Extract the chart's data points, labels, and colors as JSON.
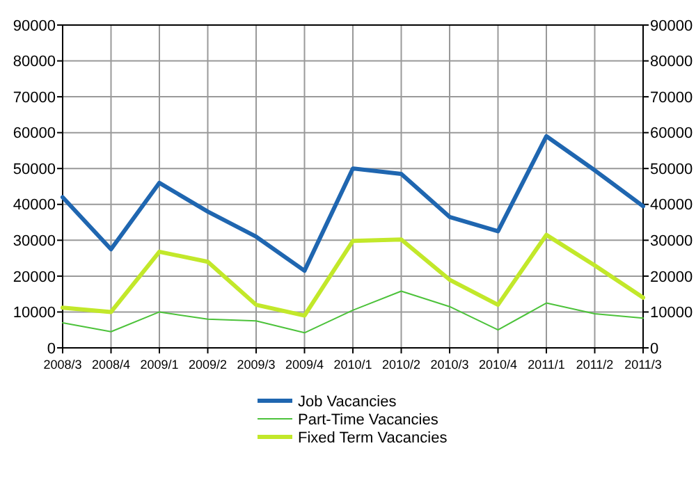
{
  "chart_data": {
    "type": "line",
    "categories": [
      "2008/3",
      "2008/4",
      "2009/1",
      "2009/2",
      "2009/3",
      "2009/4",
      "2010/1",
      "2010/2",
      "2010/3",
      "2010/4",
      "2011/1",
      "2011/2",
      "2011/3"
    ],
    "series": [
      {
        "name": "Job Vacancies",
        "color": "#1f66b0",
        "values": [
          42000,
          27500,
          46000,
          38000,
          31000,
          21500,
          50000,
          48500,
          36500,
          32500,
          59000,
          49500,
          39500
        ]
      },
      {
        "name": "Part-Time Vacancies",
        "color": "#4cc23a",
        "values": [
          7000,
          4500,
          10000,
          8000,
          7500,
          4200,
          10500,
          15800,
          11500,
          5000,
          12500,
          9500,
          8300
        ]
      },
      {
        "name": "Fixed Term Vacancies",
        "color": "#c2e82a",
        "values": [
          11200,
          10000,
          26800,
          24000,
          12000,
          9000,
          29800,
          30200,
          19000,
          12000,
          31500,
          23000,
          14000
        ]
      }
    ],
    "ylim": [
      0,
      90000
    ],
    "yticks": [
      0,
      10000,
      20000,
      30000,
      40000,
      50000,
      60000,
      70000,
      80000,
      90000
    ],
    "y2lim": [
      0,
      90000
    ],
    "y2ticks": [
      0,
      10000,
      20000,
      30000,
      40000,
      50000,
      60000,
      70000,
      80000,
      90000
    ],
    "grid": true,
    "legend": "bottom",
    "marker": "none",
    "line_style": "solid"
  }
}
